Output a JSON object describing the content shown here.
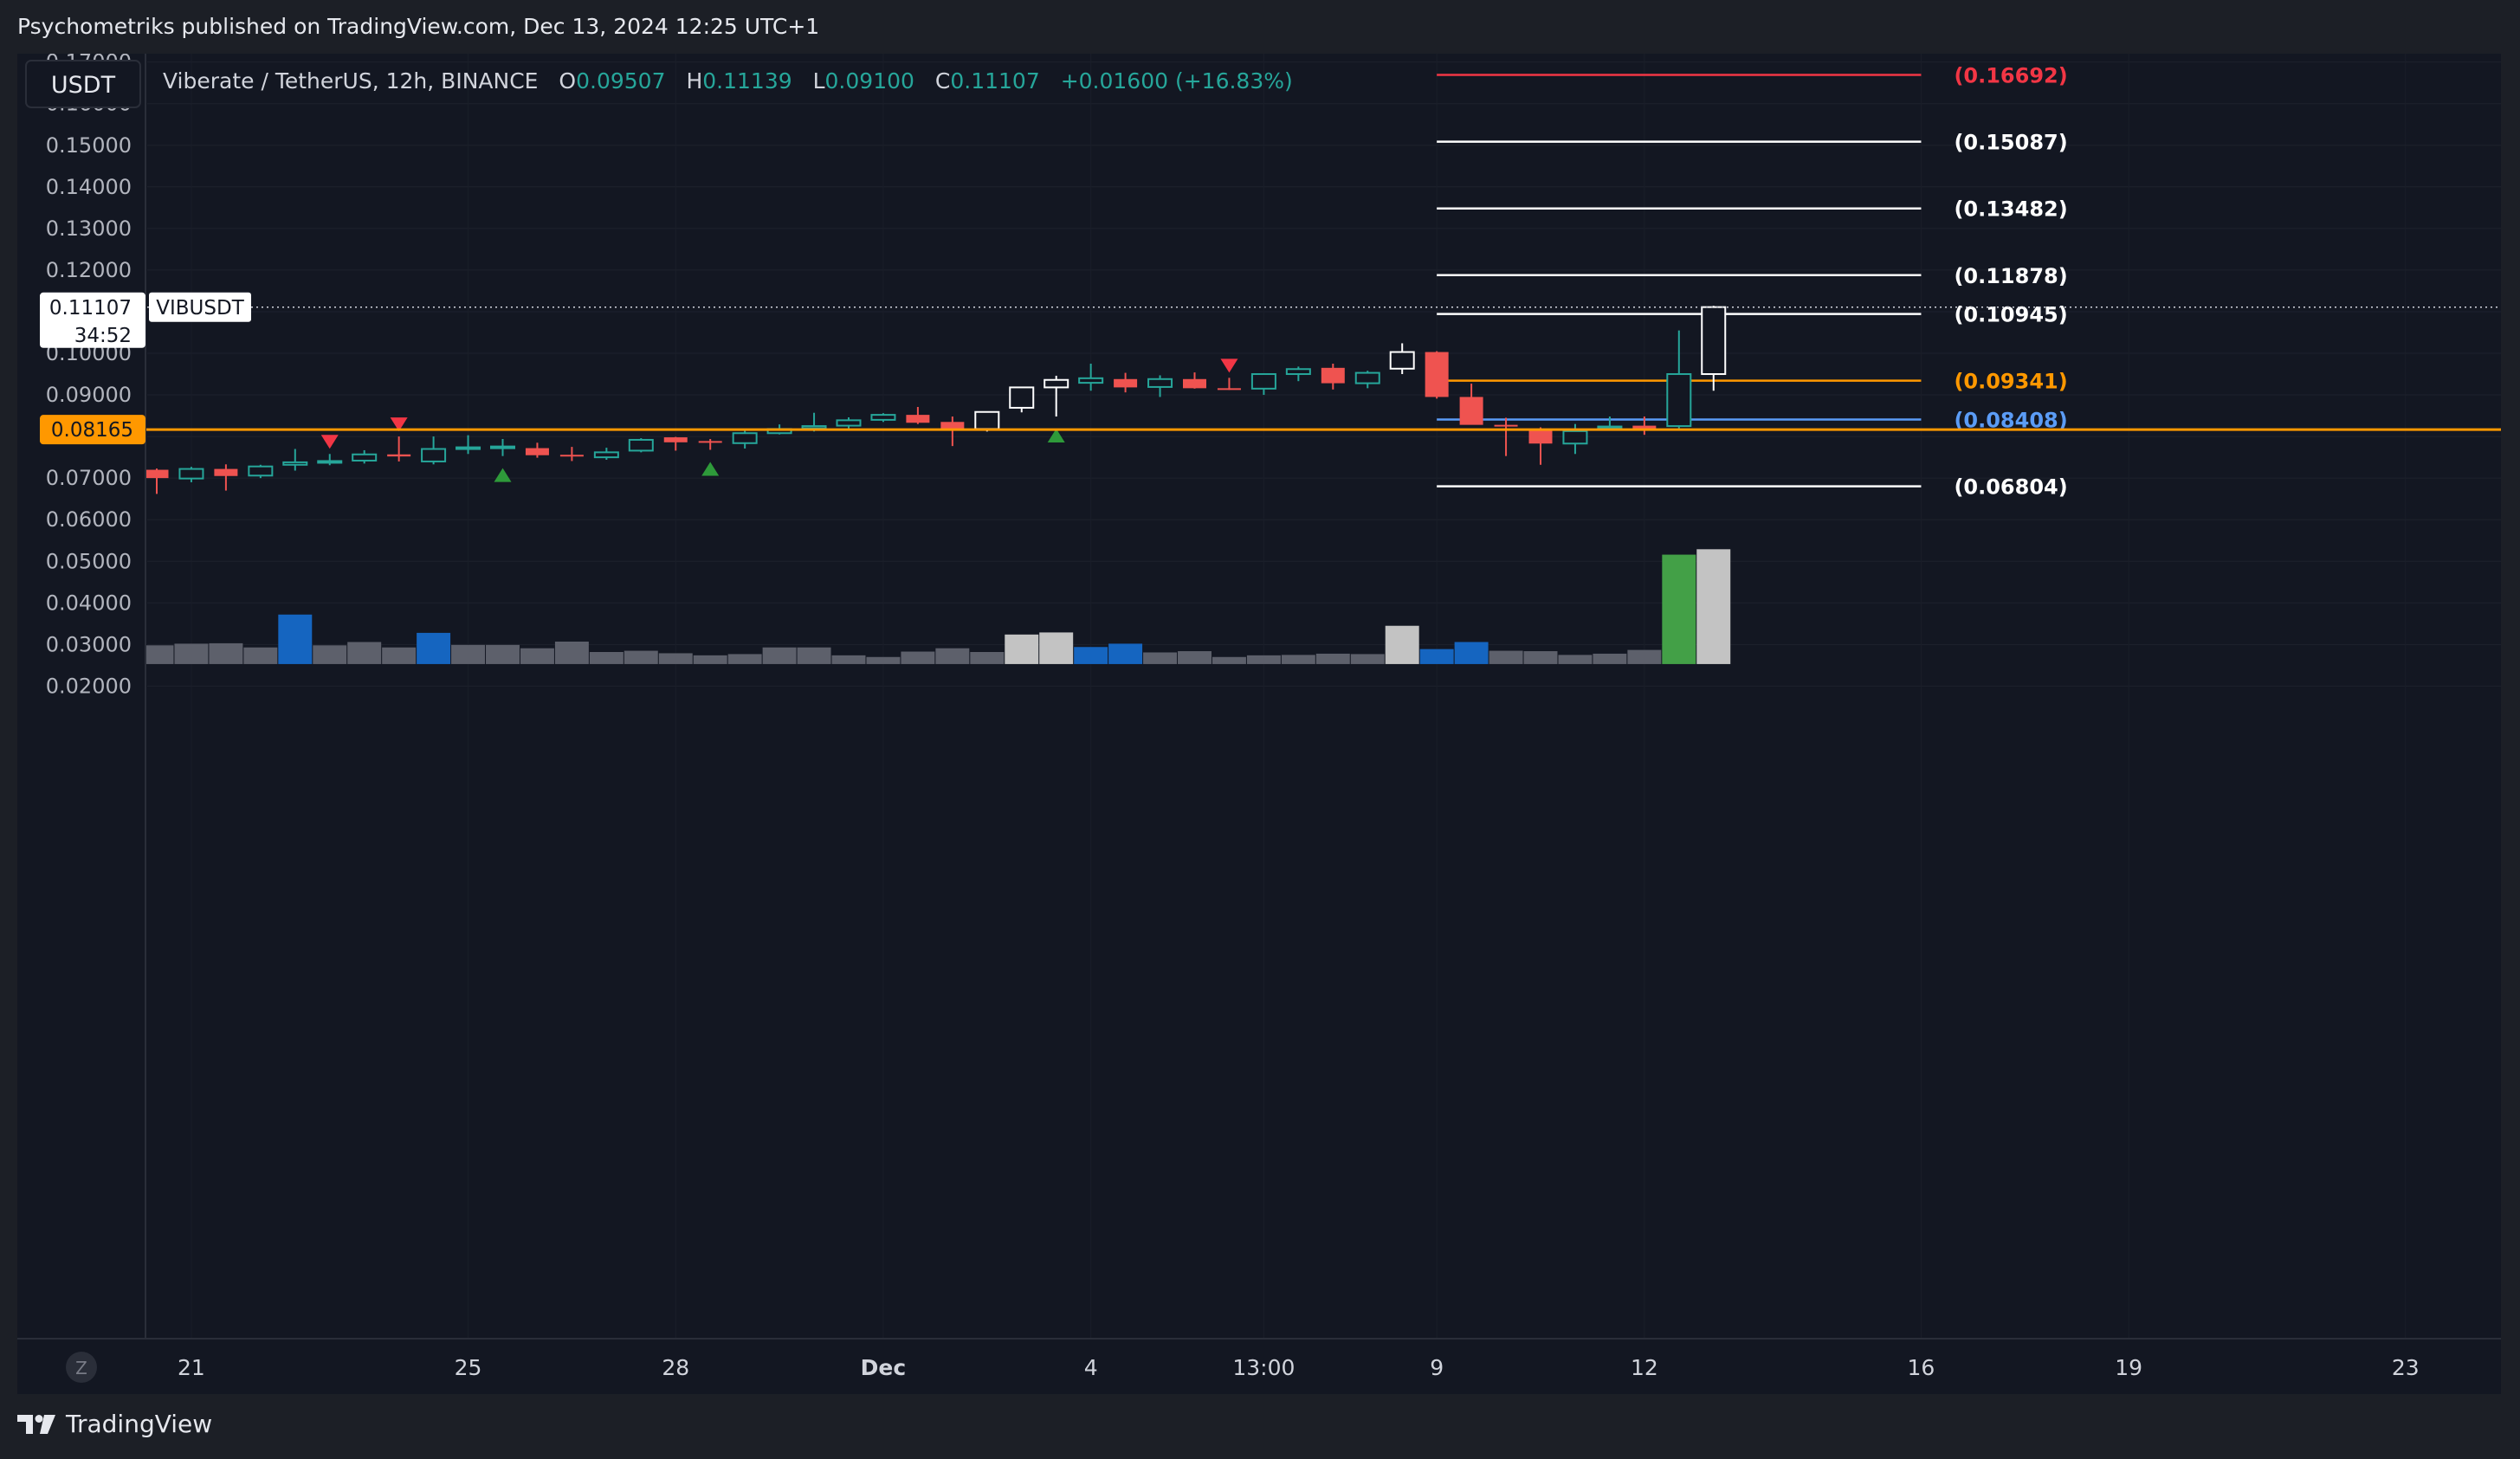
{
  "header": {
    "publisher_line": "Psychometriks published on TradingView.com, Dec 13, 2024 12:25 UTC+1"
  },
  "footer": {
    "brand": "TradingView"
  },
  "toolbar": {
    "currency_button": "USDT",
    "time_zone_button": "Z"
  },
  "legend": {
    "symbol": "Viberate / TetherUS, 12h, BINANCE",
    "o_label": "O",
    "o_value": "0.09507",
    "h_label": "H",
    "h_value": "0.11139",
    "l_label": "L",
    "l_value": "0.09100",
    "c_label": "C",
    "c_value": "0.11107",
    "change": "+0.01600 (+16.83%)"
  },
  "price_tag": {
    "price": "0.11107",
    "countdown": "34:52",
    "symbol": "VIBUSDT"
  },
  "level_tag": {
    "price": "0.08165"
  },
  "colors": {
    "background": "#131722",
    "up": "#26a69a",
    "down": "#ef5350",
    "highlight_candle": "#ffffff",
    "volume_normal": "#5d606b",
    "volume_blue": "#1565c0",
    "volume_light": "#c3c3c3",
    "volume_green": "#43a047",
    "level_line": "#ff9800",
    "fib_red": "#f23645",
    "fib_orange": "#ff9800",
    "fib_blue": "#5b9cf6",
    "fib_white": "#ffffff"
  },
  "chart_data": {
    "type": "candlestick",
    "title": "Viberate / TetherUS, 12h, BINANCE",
    "ylim": [
      0.016,
      0.1728
    ],
    "y_ticks": [
      "0.17000",
      "0.16000",
      "0.15000",
      "0.14000",
      "0.13000",
      "0.12000",
      "0.11000",
      "0.10000",
      "0.09000",
      "0.08000",
      "0.07000",
      "0.06000",
      "0.05000",
      "0.04000",
      "0.03000",
      "0.02000"
    ],
    "x_ticks": [
      {
        "label": "21",
        "bar": 1
      },
      {
        "label": "25",
        "bar": 9
      },
      {
        "label": "28",
        "bar": 15
      },
      {
        "label": "Dec",
        "bar": 21
      },
      {
        "label": "4",
        "bar": 27
      },
      {
        "label": "13:00",
        "bar": 32
      },
      {
        "label": "9",
        "bar": 37
      },
      {
        "label": "12",
        "bar": 43
      },
      {
        "label": "16",
        "bar": 51
      },
      {
        "label": "19",
        "bar": 57
      },
      {
        "label": "23",
        "bar": 65
      }
    ],
    "candles": [
      {
        "o": 0.072,
        "h": 0.0723,
        "l": 0.0662,
        "c": 0.07
      },
      {
        "o": 0.0699,
        "h": 0.0727,
        "l": 0.069,
        "c": 0.0722
      },
      {
        "o": 0.0722,
        "h": 0.0733,
        "l": 0.067,
        "c": 0.0705
      },
      {
        "o": 0.0706,
        "h": 0.0732,
        "l": 0.07,
        "c": 0.0728
      },
      {
        "o": 0.0732,
        "h": 0.077,
        "l": 0.0718,
        "c": 0.0738
      },
      {
        "o": 0.0738,
        "h": 0.0758,
        "l": 0.0731,
        "c": 0.0741
      },
      {
        "o": 0.0742,
        "h": 0.0767,
        "l": 0.0735,
        "c": 0.0757
      },
      {
        "o": 0.0757,
        "h": 0.08,
        "l": 0.074,
        "c": 0.0752
      },
      {
        "o": 0.074,
        "h": 0.08,
        "l": 0.0733,
        "c": 0.077
      },
      {
        "o": 0.077,
        "h": 0.0803,
        "l": 0.0758,
        "c": 0.0774
      },
      {
        "o": 0.0773,
        "h": 0.0794,
        "l": 0.0753,
        "c": 0.0776
      },
      {
        "o": 0.0772,
        "h": 0.0785,
        "l": 0.0749,
        "c": 0.0755
      },
      {
        "o": 0.0756,
        "h": 0.0775,
        "l": 0.0741,
        "c": 0.0753
      },
      {
        "o": 0.075,
        "h": 0.0773,
        "l": 0.0744,
        "c": 0.0762
      },
      {
        "o": 0.0766,
        "h": 0.0796,
        "l": 0.0762,
        "c": 0.0792
      },
      {
        "o": 0.0798,
        "h": 0.0799,
        "l": 0.0766,
        "c": 0.0786
      },
      {
        "o": 0.0789,
        "h": 0.0794,
        "l": 0.0768,
        "c": 0.0785
      },
      {
        "o": 0.0784,
        "h": 0.0816,
        "l": 0.0771,
        "c": 0.0808
      },
      {
        "o": 0.0808,
        "h": 0.0829,
        "l": 0.0805,
        "c": 0.0818
      },
      {
        "o": 0.082,
        "h": 0.0857,
        "l": 0.0812,
        "c": 0.0825
      },
      {
        "o": 0.0826,
        "h": 0.0846,
        "l": 0.0818,
        "c": 0.0839
      },
      {
        "o": 0.084,
        "h": 0.0856,
        "l": 0.0835,
        "c": 0.0852
      },
      {
        "o": 0.0852,
        "h": 0.0871,
        "l": 0.083,
        "c": 0.0833
      },
      {
        "o": 0.0835,
        "h": 0.0848,
        "l": 0.0777,
        "c": 0.0818
      },
      {
        "o": 0.0818,
        "h": 0.086,
        "l": 0.0812,
        "c": 0.0859,
        "highlight": true
      },
      {
        "o": 0.0869,
        "h": 0.091,
        "l": 0.0858,
        "c": 0.0918,
        "highlight": true
      },
      {
        "o": 0.0918,
        "h": 0.0946,
        "l": 0.0848,
        "c": 0.0936,
        "highlight": true
      },
      {
        "o": 0.0929,
        "h": 0.0975,
        "l": 0.091,
        "c": 0.094
      },
      {
        "o": 0.0938,
        "h": 0.0953,
        "l": 0.0906,
        "c": 0.0918
      },
      {
        "o": 0.0919,
        "h": 0.0947,
        "l": 0.0895,
        "c": 0.0938
      },
      {
        "o": 0.0938,
        "h": 0.0954,
        "l": 0.0915,
        "c": 0.0916
      },
      {
        "o": 0.0916,
        "h": 0.0941,
        "l": 0.0912,
        "c": 0.0914
      },
      {
        "o": 0.0915,
        "h": 0.0952,
        "l": 0.09,
        "c": 0.095
      },
      {
        "o": 0.095,
        "h": 0.0968,
        "l": 0.0933,
        "c": 0.0962
      },
      {
        "o": 0.0965,
        "h": 0.0975,
        "l": 0.0913,
        "c": 0.0928
      },
      {
        "o": 0.0928,
        "h": 0.0958,
        "l": 0.0916,
        "c": 0.0953
      },
      {
        "o": 0.0963,
        "h": 0.1024,
        "l": 0.095,
        "c": 0.1003,
        "highlight": true
      },
      {
        "o": 0.1003,
        "h": 0.1005,
        "l": 0.0891,
        "c": 0.0895
      },
      {
        "o": 0.0895,
        "h": 0.0927,
        "l": 0.083,
        "c": 0.0828
      },
      {
        "o": 0.0828,
        "h": 0.0845,
        "l": 0.0753,
        "c": 0.0824
      },
      {
        "o": 0.0817,
        "h": 0.0822,
        "l": 0.0732,
        "c": 0.0783
      },
      {
        "o": 0.0783,
        "h": 0.083,
        "l": 0.0758,
        "c": 0.0813
      },
      {
        "o": 0.082,
        "h": 0.0848,
        "l": 0.0818,
        "c": 0.0824
      },
      {
        "o": 0.0826,
        "h": 0.0848,
        "l": 0.0804,
        "c": 0.0818
      },
      {
        "o": 0.0825,
        "h": 0.1055,
        "l": 0.0818,
        "c": 0.095
      },
      {
        "o": 0.095,
        "h": 0.1114,
        "l": 0.091,
        "c": 0.1111,
        "highlight": true
      }
    ],
    "volume": [
      {
        "v": 0.0298,
        "kind": "normal"
      },
      {
        "v": 0.0302,
        "kind": "normal"
      },
      {
        "v": 0.0303,
        "kind": "normal"
      },
      {
        "v": 0.0293,
        "kind": "normal"
      },
      {
        "v": 0.0372,
        "kind": "blue"
      },
      {
        "v": 0.0298,
        "kind": "normal"
      },
      {
        "v": 0.0306,
        "kind": "normal"
      },
      {
        "v": 0.0293,
        "kind": "normal"
      },
      {
        "v": 0.0328,
        "kind": "blue"
      },
      {
        "v": 0.0299,
        "kind": "normal"
      },
      {
        "v": 0.0299,
        "kind": "normal"
      },
      {
        "v": 0.0291,
        "kind": "normal"
      },
      {
        "v": 0.0307,
        "kind": "normal"
      },
      {
        "v": 0.0282,
        "kind": "normal"
      },
      {
        "v": 0.0285,
        "kind": "normal"
      },
      {
        "v": 0.0279,
        "kind": "normal"
      },
      {
        "v": 0.0274,
        "kind": "normal"
      },
      {
        "v": 0.0277,
        "kind": "normal"
      },
      {
        "v": 0.0293,
        "kind": "normal"
      },
      {
        "v": 0.0293,
        "kind": "normal"
      },
      {
        "v": 0.0274,
        "kind": "normal"
      },
      {
        "v": 0.027,
        "kind": "normal"
      },
      {
        "v": 0.0283,
        "kind": "normal"
      },
      {
        "v": 0.0291,
        "kind": "normal"
      },
      {
        "v": 0.0282,
        "kind": "normal"
      },
      {
        "v": 0.0324,
        "kind": "light"
      },
      {
        "v": 0.0329,
        "kind": "light"
      },
      {
        "v": 0.0294,
        "kind": "blue"
      },
      {
        "v": 0.0302,
        "kind": "blue"
      },
      {
        "v": 0.0281,
        "kind": "normal"
      },
      {
        "v": 0.0284,
        "kind": "normal"
      },
      {
        "v": 0.027,
        "kind": "normal"
      },
      {
        "v": 0.0274,
        "kind": "normal"
      },
      {
        "v": 0.0275,
        "kind": "normal"
      },
      {
        "v": 0.0278,
        "kind": "normal"
      },
      {
        "v": 0.0277,
        "kind": "normal"
      },
      {
        "v": 0.0345,
        "kind": "light"
      },
      {
        "v": 0.0289,
        "kind": "blue"
      },
      {
        "v": 0.0306,
        "kind": "blue"
      },
      {
        "v": 0.0285,
        "kind": "normal"
      },
      {
        "v": 0.0284,
        "kind": "normal"
      },
      {
        "v": 0.0275,
        "kind": "normal"
      },
      {
        "v": 0.0278,
        "kind": "normal"
      },
      {
        "v": 0.0287,
        "kind": "normal"
      },
      {
        "v": 0.0516,
        "kind": "green"
      },
      {
        "v": 0.0529,
        "kind": "light"
      }
    ],
    "volume_base": 0.0253,
    "markers": [
      {
        "bar": 5,
        "dir": "down"
      },
      {
        "bar": 7,
        "dir": "down"
      },
      {
        "bar": 10,
        "dir": "up"
      },
      {
        "bar": 16,
        "dir": "up"
      },
      {
        "bar": 26,
        "dir": "up"
      },
      {
        "bar": 31,
        "dir": "down"
      }
    ],
    "horizontal_level": 0.08165,
    "current_price": 0.11107,
    "fib_levels": [
      {
        "value": 0.16692,
        "label": "(0.16692)",
        "color": "red"
      },
      {
        "value": 0.15087,
        "label": "(0.15087)",
        "color": "white"
      },
      {
        "value": 0.13482,
        "label": "(0.13482)",
        "color": "white"
      },
      {
        "value": 0.11878,
        "label": "(0.11878)",
        "color": "white"
      },
      {
        "value": 0.10945,
        "label": "(0.10945)",
        "color": "white"
      },
      {
        "value": 0.09341,
        "label": "(0.09341)",
        "color": "orange"
      },
      {
        "value": 0.08408,
        "label": "(0.08408)",
        "color": "blue"
      },
      {
        "value": 0.06804,
        "label": "(0.06804)",
        "color": "white"
      }
    ],
    "fib_bar_start": 37,
    "fib_bar_end": 51
  }
}
